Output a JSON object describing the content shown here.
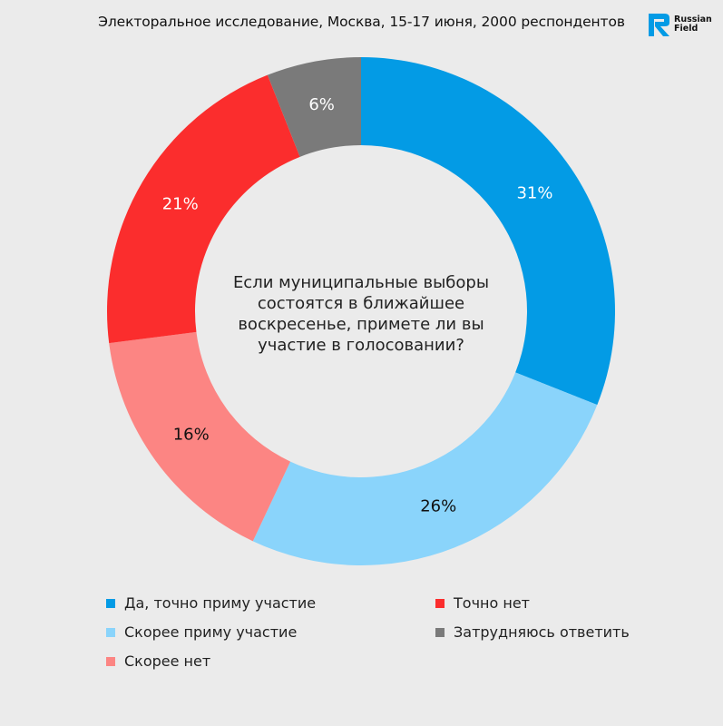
{
  "header": {
    "title": "Электоральное исследование, Москва, 15-17 июня, 2000 респондентов",
    "logo_line1": "Russian",
    "logo_line2": "Field"
  },
  "chart_data": {
    "type": "pie",
    "subtype": "donut",
    "center_text": "Если муниципальные выборы состоятся в ближайшее воскресенье, примете ли вы участие в голосовании?",
    "legend_placement": "bottom",
    "slices": [
      {
        "name": "Да, точно приму участие",
        "value": 31,
        "label": "31%",
        "color": "#039be5",
        "label_color": "#ffffff"
      },
      {
        "name": "Скорее приму участие",
        "value": 26,
        "label": "26%",
        "color": "#8ad4fb",
        "label_color": "#111111"
      },
      {
        "name": "Скорее нет",
        "value": 16,
        "label": "16%",
        "color": "#fc8583",
        "label_color": "#111111"
      },
      {
        "name": "Точно нет",
        "value": 21,
        "label": "21%",
        "color": "#fb2d2d",
        "label_color": "#ffffff"
      },
      {
        "name": "Затрудняюсь ответить",
        "value": 6,
        "label": "6%",
        "color": "#7a7a7a",
        "label_color": "#ffffff"
      }
    ]
  }
}
